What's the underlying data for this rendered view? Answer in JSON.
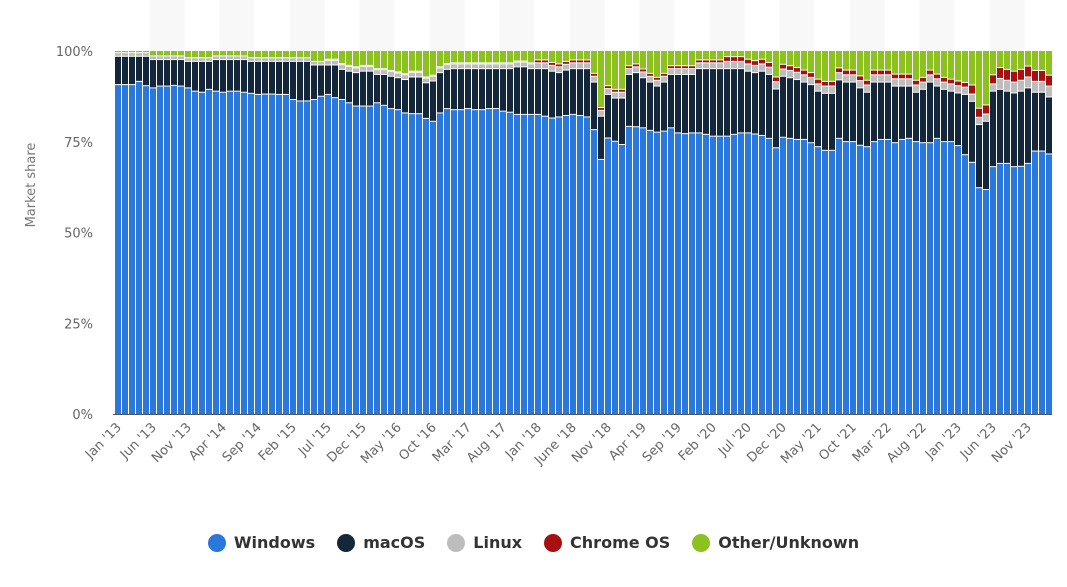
{
  "chart_data": {
    "type": "bar",
    "stacked": true,
    "title": "",
    "xlabel": "",
    "ylabel": "Market share",
    "ylim": [
      0,
      100
    ],
    "y_ticks": [
      "0%",
      "25%",
      "50%",
      "75%",
      "100%"
    ],
    "tick_every": 5,
    "tick_labels": [
      "Jan '13",
      "Jun '13",
      "Nov '13",
      "Apr '14",
      "Sep '14",
      "Feb '15",
      "Jul '15",
      "Dec '15",
      "May '16",
      "Oct '16",
      "Mar '17",
      "Aug '17",
      "Jan '18",
      "June '18",
      "Nov '18",
      "Apr '19",
      "Sep '19",
      "Feb '20",
      "Jul '20",
      "Dec '20",
      "May '21",
      "Oct '21",
      "Mar '22",
      "Aug '22",
      "Jan '23",
      "Jun '23",
      "Nov '23"
    ],
    "legend_position": "bottom",
    "series": [
      {
        "name": "Windows",
        "color": "#2b78dc",
        "values": [
          90.6,
          90.6,
          90.6,
          91.5,
          90.3,
          89.7,
          90.2,
          90.2,
          90.4,
          90.2,
          89.7,
          88.8,
          88.5,
          89.3,
          88.8,
          88.5,
          88.8,
          88.8,
          88.5,
          88.2,
          87.9,
          88.0,
          88.0,
          87.9,
          87.9,
          86.5,
          86.1,
          86.1,
          86.5,
          87.4,
          87.9,
          87.0,
          86.5,
          85.6,
          84.7,
          84.7,
          84.7,
          85.6,
          84.9,
          84.0,
          83.7,
          82.8,
          82.6,
          82.6,
          81.3,
          80.5,
          82.8,
          84.0,
          83.7,
          83.7,
          84.0,
          83.7,
          83.7,
          84.0,
          84.0,
          83.3,
          83.0,
          82.4,
          82.4,
          82.4,
          82.4,
          81.9,
          81.4,
          81.7,
          82.1,
          82.4,
          82.1,
          81.7,
          78.2,
          70.0,
          75.9,
          75.0,
          74.1,
          79.1,
          79.0,
          78.7,
          78.0,
          77.5,
          77.8,
          78.7,
          77.3,
          77.1,
          77.3,
          77.3,
          76.9,
          76.4,
          76.4,
          76.4,
          76.9,
          77.3,
          77.3,
          77.0,
          76.6,
          75.8,
          73.2,
          76.1,
          75.8,
          75.5,
          75.5,
          74.6,
          73.5,
          72.5,
          72.5,
          75.8,
          74.9,
          74.9,
          73.9,
          73.5,
          74.9,
          75.5,
          75.5,
          74.6,
          75.5,
          75.8,
          74.9,
          74.6,
          74.6,
          75.8,
          74.9,
          74.9,
          73.8,
          71.3,
          69.2,
          62.2,
          61.7,
          68.0,
          68.9,
          68.9,
          68.0,
          68.1,
          68.9,
          72.3,
          72.3,
          71.5
        ]
      },
      {
        "name": "macOS",
        "color": "#14263a",
        "values": [
          7.8,
          7.8,
          7.8,
          6.9,
          8.1,
          7.8,
          7.3,
          7.3,
          7.1,
          7.3,
          7.3,
          8.2,
          8.5,
          7.7,
          8.7,
          9.0,
          8.7,
          8.7,
          9.0,
          8.8,
          9.1,
          9.0,
          9.0,
          9.1,
          9.1,
          10.5,
          10.9,
          10.9,
          9.5,
          8.6,
          8.1,
          9.0,
          8.3,
          8.7,
          9.2,
          9.6,
          9.6,
          7.8,
          8.5,
          8.9,
          8.8,
          9.2,
          10.1,
          10.1,
          9.8,
          11.1,
          11.1,
          10.8,
          11.3,
          11.3,
          11.0,
          11.3,
          11.3,
          11.0,
          11.0,
          11.7,
          12.0,
          13.1,
          13.1,
          12.6,
          12.6,
          13.1,
          12.9,
          12.2,
          12.5,
          12.6,
          12.9,
          13.3,
          13.1,
          11.9,
          12.0,
          11.9,
          12.8,
          14.3,
          14.9,
          13.8,
          13.3,
          12.7,
          13.5,
          14.7,
          16.1,
          16.3,
          16.1,
          17.7,
          18.1,
          18.6,
          18.6,
          18.6,
          18.1,
          17.7,
          17.0,
          16.9,
          17.7,
          17.6,
          16.2,
          16.8,
          16.7,
          16.5,
          15.8,
          16.0,
          15.3,
          15.7,
          15.7,
          16.1,
          16.4,
          16.4,
          15.8,
          15.0,
          16.4,
          15.8,
          15.8,
          15.6,
          14.7,
          14.4,
          13.6,
          14.7,
          16.7,
          14.4,
          14.4,
          13.9,
          14.5,
          16.6,
          16.8,
          17.4,
          18.8,
          20.8,
          20.4,
          19.9,
          20.3,
          20.7,
          20.8,
          16.2,
          16.2,
          15.7
        ]
      },
      {
        "name": "Linux",
        "color": "#bdbdbd",
        "values": [
          1.0,
          1.0,
          1.0,
          1.0,
          1.0,
          1.0,
          1.0,
          1.0,
          1.0,
          1.0,
          1.0,
          1.0,
          1.0,
          1.0,
          1.0,
          1.0,
          1.0,
          1.0,
          1.0,
          1.0,
          1.0,
          1.0,
          1.0,
          1.0,
          1.0,
          1.0,
          1.0,
          1.0,
          1.0,
          1.0,
          1.3,
          1.3,
          1.3,
          1.3,
          1.3,
          1.3,
          1.3,
          1.3,
          1.3,
          1.3,
          1.3,
          1.3,
          1.3,
          1.3,
          1.3,
          1.3,
          1.3,
          1.3,
          1.3,
          1.3,
          1.3,
          1.3,
          1.3,
          1.3,
          1.3,
          1.3,
          1.3,
          1.3,
          1.3,
          1.3,
          1.6,
          1.6,
          1.6,
          1.6,
          1.6,
          1.6,
          1.6,
          1.6,
          1.6,
          1.6,
          1.6,
          1.6,
          1.6,
          1.6,
          1.6,
          1.6,
          1.6,
          1.6,
          1.6,
          1.6,
          1.6,
          1.6,
          1.6,
          1.6,
          1.6,
          1.6,
          1.6,
          2.0,
          2.0,
          2.0,
          2.0,
          2.0,
          2.0,
          2.0,
          2.0,
          2.0,
          2.0,
          2.0,
          2.0,
          2.0,
          2.0,
          2.0,
          2.0,
          2.0,
          2.0,
          2.0,
          2.0,
          2.0,
          2.0,
          2.0,
          2.0,
          2.0,
          2.0,
          2.0,
          2.0,
          2.0,
          2.0,
          2.0,
          2.0,
          2.0,
          2.0,
          2.0,
          2.0,
          2.0,
          2.0,
          2.0,
          3.0,
          3.0,
          3.0,
          3.0,
          3.0,
          3.0,
          3.0,
          3.0
        ]
      },
      {
        "name": "Chrome OS",
        "color": "#a80f0f",
        "values": [
          0,
          0,
          0,
          0,
          0,
          0,
          0,
          0,
          0,
          0,
          0,
          0,
          0,
          0,
          0,
          0,
          0,
          0,
          0,
          0,
          0,
          0,
          0,
          0,
          0,
          0,
          0,
          0,
          0,
          0,
          0.3,
          0.3,
          0.3,
          0.3,
          0.3,
          0.3,
          0.3,
          0.3,
          0.3,
          0.3,
          0.3,
          0.3,
          0.3,
          0.3,
          0.3,
          0.3,
          0.3,
          0.3,
          0.3,
          0.3,
          0.3,
          0.3,
          0.3,
          0.3,
          0.3,
          0.3,
          0.3,
          0.3,
          0.3,
          0.3,
          0.8,
          0.8,
          0.8,
          0.8,
          0.8,
          0.8,
          0.8,
          0.8,
          0.8,
          0.8,
          0.8,
          0.8,
          0.8,
          0.8,
          0.8,
          0.8,
          0.8,
          0.8,
          0.8,
          0.8,
          0.8,
          0.8,
          0.8,
          0.8,
          0.8,
          0.8,
          0.8,
          1.3,
          1.3,
          1.3,
          1.3,
          1.3,
          1.3,
          1.3,
          1.3,
          1.3,
          1.3,
          1.3,
          1.3,
          1.3,
          1.3,
          1.3,
          1.3,
          1.3,
          1.3,
          1.3,
          1.3,
          1.3,
          1.3,
          1.3,
          1.3,
          1.3,
          1.3,
          1.3,
          1.3,
          1.3,
          1.3,
          1.3,
          1.3,
          1.3,
          1.3,
          1.3,
          2.5,
          2.5,
          2.5,
          2.5,
          3.0,
          3.0,
          3.0,
          3.0,
          3.0,
          3.0,
          3.0,
          3.0
        ]
      },
      {
        "name": "Other/Unknown",
        "color": "#8cc11f",
        "values": [
          0.6,
          0.6,
          0.6,
          0.6,
          0.6,
          1.5,
          1.5,
          1.5,
          1.5,
          1.5,
          2.0,
          2.0,
          2.0,
          2.0,
          1.5,
          1.5,
          1.5,
          1.5,
          1.5,
          2.0,
          2.0,
          2.0,
          2.0,
          2.0,
          2.0,
          2.0,
          2.0,
          2.0,
          3.0,
          3.0,
          2.4,
          2.4,
          3.6,
          4.1,
          4.5,
          4.1,
          4.1,
          5.0,
          5.0,
          5.5,
          5.9,
          6.4,
          5.7,
          5.7,
          7.3,
          6.8,
          4.5,
          3.6,
          3.4,
          3.4,
          3.4,
          3.4,
          3.4,
          3.4,
          3.4,
          3.4,
          3.4,
          2.9,
          2.9,
          3.4,
          2.6,
          2.6,
          3.3,
          3.7,
          3.0,
          2.6,
          2.6,
          2.6,
          6.3,
          15.7,
          9.7,
          10.7,
          10.7,
          4.2,
          3.7,
          5.1,
          6.3,
          7.4,
          6.3,
          4.2,
          4.2,
          4.2,
          4.2,
          2.6,
          2.6,
          2.6,
          2.6,
          1.7,
          1.7,
          1.7,
          2.4,
          2.8,
          2.4,
          3.3,
          7.3,
          3.8,
          4.2,
          4.7,
          5.4,
          6.1,
          7.9,
          8.5,
          8.5,
          4.8,
          5.4,
          5.4,
          7.0,
          8.2,
          5.4,
          5.4,
          5.4,
          6.5,
          6.5,
          6.5,
          8.2,
          7.4,
          5.4,
          6.5,
          7.4,
          7.9,
          8.4,
          8.8,
          9.5,
          15.9,
          15.0,
          6.7,
          4.7,
          5.2,
          5.7,
          5.2,
          4.3,
          5.5,
          5.5,
          6.8
        ]
      }
    ]
  }
}
